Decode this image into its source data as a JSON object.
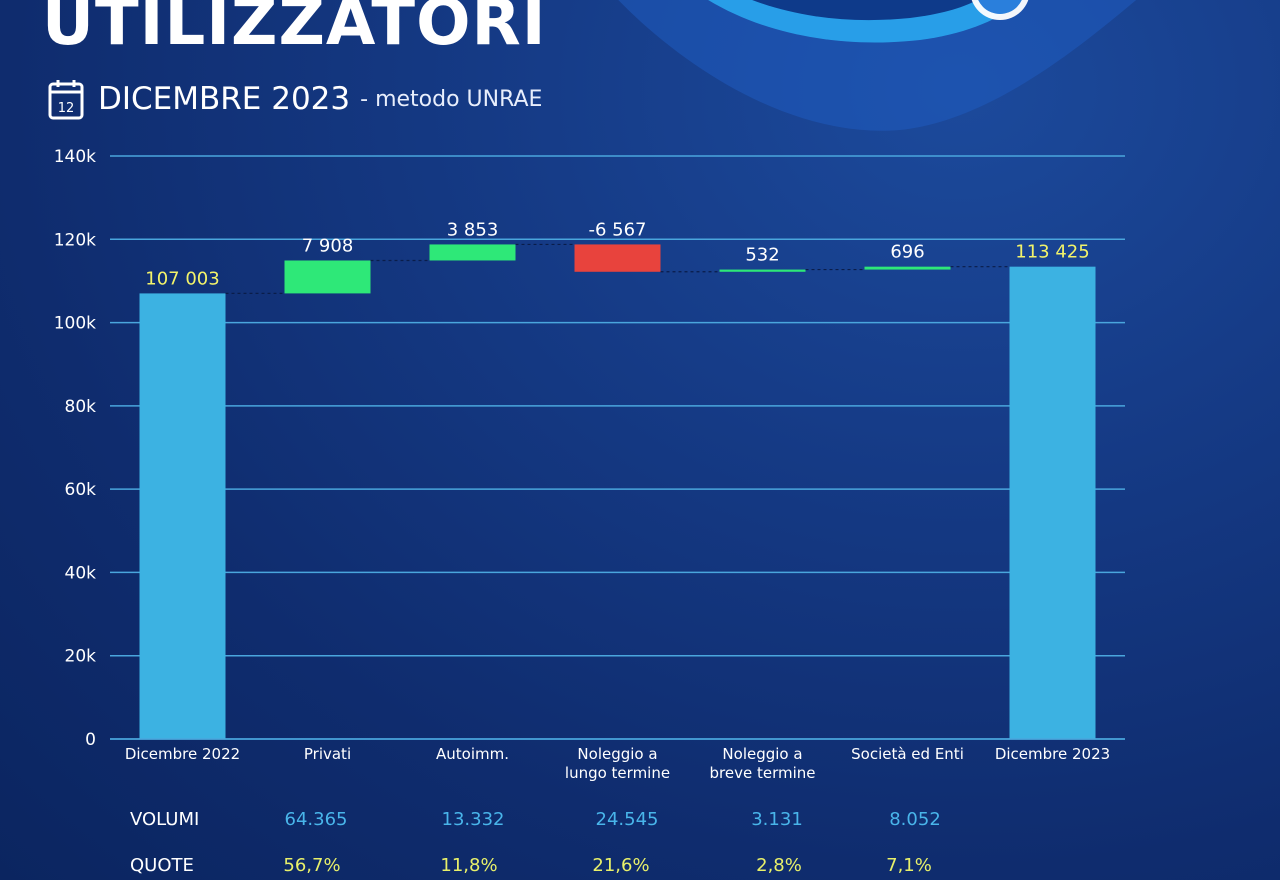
{
  "header": {
    "title": "UTILIZZATORI",
    "calendar_icon_text": "12",
    "subtitle": "DICEMBRE 2023",
    "method": "- metodo UNRAE"
  },
  "colors": {
    "total": "#3cb2e2",
    "increase": "#2ee878",
    "decrease": "#e8433d",
    "grid": "#4aa6dd",
    "total_label": "#f3f36a",
    "axis_text": "#ffffff"
  },
  "chart_data": {
    "type": "waterfall",
    "categories": [
      "Dicembre 2022",
      "Privati",
      "Autoimm.",
      "Noleggio a lungo termine",
      "Noleggio a breve termine",
      "Società ed Enti",
      "Dicembre 2023"
    ],
    "category_lines": [
      [
        "Dicembre 2022"
      ],
      [
        "Privati"
      ],
      [
        "Autoimm."
      ],
      [
        "Noleggio a",
        "lungo termine"
      ],
      [
        "Noleggio a",
        "breve termine"
      ],
      [
        "Società ed Enti"
      ],
      [
        "Dicembre 2023"
      ]
    ],
    "values": [
      107003,
      7908,
      3853,
      -6567,
      532,
      696,
      113425
    ],
    "kinds": [
      "total",
      "delta",
      "delta",
      "delta",
      "delta",
      "delta",
      "total"
    ],
    "labels": [
      "107 003",
      "7 908",
      "3 853",
      "-6 567",
      "532",
      "696",
      "113 425"
    ],
    "ylim": [
      0,
      140000
    ],
    "yticks": [
      0,
      20000,
      40000,
      60000,
      80000,
      100000,
      120000,
      140000
    ],
    "ytick_labels": [
      "0",
      "20k",
      "40k",
      "60k",
      "80k",
      "100k",
      "120k",
      "140k"
    ],
    "grid": true
  },
  "table": {
    "volumi_label": "VOLUMI",
    "volumi": [
      "64.365",
      "13.332",
      "24.545",
      "3.131",
      "8.052"
    ],
    "quote_label": "QUOTE",
    "quote": [
      "56,7%",
      "11,8%",
      "21,6%",
      "2,8%",
      "7,1%"
    ]
  }
}
